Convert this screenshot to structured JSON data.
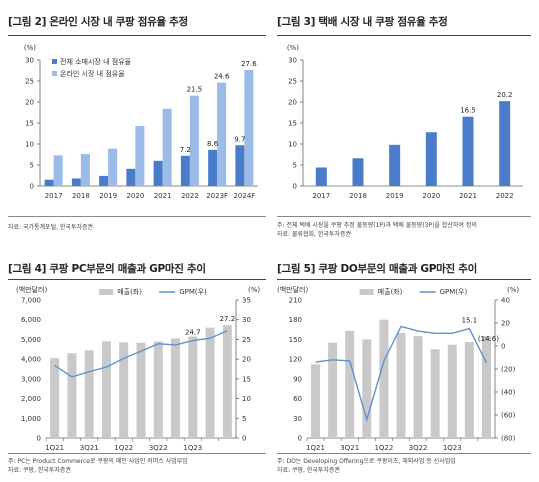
{
  "panels": [
    {
      "title": "[그림 2] 온라인 시장 내 쿠팡 점유율 추정",
      "notes": [
        "자료: 국가통계포털, 한국투자증권"
      ],
      "legend": [
        "전체 소매시장 내 점유율",
        "온라인 시장 내 점유율"
      ],
      "unit_left": "(%)"
    },
    {
      "title": "[그림 3] 택배 시장 내 쿠팡 점유율 추정",
      "notes": [
        "주: 전체 택배 시장을 쿠팡 추정 물동량(1P)과 택배 물동량(3P)을 합산하여 정의",
        "자료: 물류협회, 한국투자증권"
      ],
      "unit_left": "(%)"
    },
    {
      "title": "[그림 4] 쿠팡 PC부문의 매출과 GP마진 추이",
      "notes": [
        "주: PC는 Product Commerce로 쿠팡의 메인 사업인 커머스 사업부임",
        "자료: 쿠팡, 한국투자증권"
      ],
      "legend": [
        "매출(좌)",
        "GPM(우)"
      ],
      "unit_left": "(백만달러)",
      "unit_right": "(%)"
    },
    {
      "title": "[그림 5] 쿠팡 DO부문의 매출과 GP마진 추이",
      "notes": [
        "주: DO는 Developing Offering으로 쿠팡이츠, 해외사업 등 신사업임",
        "자료: 쿠팡, 한국투자증권"
      ],
      "legend": [
        "매출(좌)",
        "GPM(우)"
      ],
      "unit_left": "(백만달러)",
      "unit_right": "(%)"
    }
  ],
  "chart_data": [
    {
      "type": "bar",
      "categories": [
        "2017",
        "2018",
        "2019",
        "2020",
        "2021",
        "2022",
        "2023F",
        "2024F"
      ],
      "series": [
        {
          "name": "전체 소매시장 내 점유율",
          "values": [
            1.5,
            1.8,
            2.4,
            4.1,
            6.0,
            7.2,
            8.6,
            9.7
          ],
          "color": "#4a7cc9"
        },
        {
          "name": "온라인 시장 내 점유율",
          "values": [
            7.3,
            7.6,
            8.9,
            14.3,
            18.4,
            21.5,
            24.6,
            27.6
          ],
          "color": "#9bbbe8"
        }
      ],
      "labels": [
        {
          "series": 0,
          "index": 5,
          "text": "7.2"
        },
        {
          "series": 0,
          "index": 6,
          "text": "8.6"
        },
        {
          "series": 0,
          "index": 7,
          "text": "9.7"
        },
        {
          "series": 1,
          "index": 5,
          "text": "21.5"
        },
        {
          "series": 1,
          "index": 6,
          "text": "24.6"
        },
        {
          "series": 1,
          "index": 7,
          "text": "27.6"
        }
      ],
      "ylim": [
        0,
        30
      ],
      "yticks": [
        "0",
        "5",
        "10",
        "15",
        "20",
        "25",
        "30"
      ],
      "grid": false,
      "legend": "top-left"
    },
    {
      "type": "bar",
      "categories": [
        "2017",
        "2018",
        "2019",
        "2020",
        "2021",
        "2022"
      ],
      "series": [
        {
          "values": [
            4.4,
            6.6,
            9.8,
            12.8,
            16.5,
            20.2
          ],
          "color": "#4a7cc9"
        }
      ],
      "labels": [
        {
          "series": 0,
          "index": 4,
          "text": "16.5"
        },
        {
          "series": 0,
          "index": 5,
          "text": "20.2"
        }
      ],
      "ylim": [
        0,
        30
      ],
      "yticks": [
        "0",
        "5",
        "10",
        "15",
        "20",
        "25",
        "30"
      ],
      "grid": false
    },
    {
      "type": "bar+line",
      "categories": [
        "1Q21",
        "2Q21",
        "3Q21",
        "4Q21",
        "1Q22",
        "2Q22",
        "3Q22",
        "4Q22",
        "1Q23",
        "2Q23",
        "3Q23"
      ],
      "xticks_shown": [
        "1Q21",
        "3Q21",
        "1Q22",
        "3Q22",
        "1Q23"
      ],
      "series": [
        {
          "name": "매출(좌)",
          "axis": "left",
          "values": [
            4050,
            4300,
            4450,
            4900,
            4850,
            4830,
            4900,
            5050,
            5150,
            5600,
            5720
          ],
          "color": "#c9c9c9"
        },
        {
          "name": "GPM(우)",
          "axis": "right",
          "values": [
            18.4,
            15.5,
            16.8,
            18.0,
            20.2,
            22.0,
            23.9,
            23.6,
            24.7,
            25.3,
            27.2
          ],
          "color": "#5b93d1"
        }
      ],
      "labels": [
        {
          "series": 1,
          "index": 8,
          "text": "24.7"
        },
        {
          "series": 1,
          "index": 10,
          "text": "27.2"
        }
      ],
      "ylim_left": [
        0,
        7000
      ],
      "yticks_left": [
        "0",
        "1,000",
        "2,000",
        "3,000",
        "4,000",
        "5,000",
        "6,000",
        "7,000"
      ],
      "ylim_right": [
        0,
        35
      ],
      "yticks_right": [
        "0",
        "5",
        "10",
        "15",
        "20",
        "25",
        "30",
        "35"
      ],
      "grid": false,
      "legend": "top-center"
    },
    {
      "type": "bar+line",
      "categories": [
        "1Q21",
        "2Q21",
        "3Q21",
        "4Q21",
        "1Q22",
        "2Q22",
        "3Q22",
        "4Q22",
        "1Q23",
        "2Q23",
        "3Q23"
      ],
      "xticks_shown": [
        "1Q21",
        "3Q21",
        "1Q22",
        "3Q22",
        "1Q23"
      ],
      "series": [
        {
          "name": "매출(좌)",
          "axis": "left",
          "values": [
            112,
            145,
            163,
            150,
            180,
            160,
            155,
            135,
            142,
            146,
            155
          ],
          "color": "#c9c9c9"
        },
        {
          "name": "GPM(우)",
          "axis": "right",
          "values": [
            -14,
            -12,
            -13,
            -64,
            -13,
            17,
            13,
            11,
            11,
            15.1,
            -14.6
          ],
          "color": "#5b93d1"
        }
      ],
      "labels": [
        {
          "series": 1,
          "index": 9,
          "text": "15.1"
        },
        {
          "series": 1,
          "index": 10,
          "text": "(14.6)"
        }
      ],
      "ylim_left": [
        0,
        210
      ],
      "yticks_left": [
        "0",
        "30",
        "60",
        "90",
        "120",
        "150",
        "180",
        "210"
      ],
      "ylim_right": [
        -80,
        40
      ],
      "yticks_right": [
        "(80)",
        "(60)",
        "(40)",
        "(20)",
        "0",
        "20",
        "40"
      ],
      "grid": false,
      "legend": "top-center"
    }
  ]
}
